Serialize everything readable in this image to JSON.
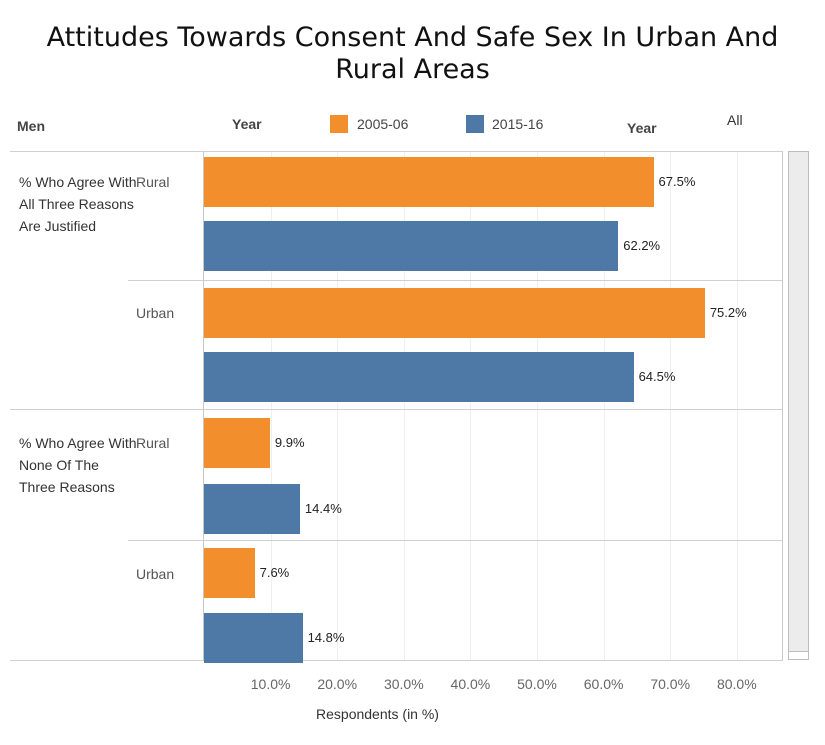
{
  "header": {
    "title_line1": "Attitudes Towards Consent And Safe Sex In Urban And",
    "title_line2": "Rural Areas",
    "men_label": "Men",
    "year_label_left": "Year",
    "year_label_right": "Year",
    "all_label": "All"
  },
  "legend": [
    {
      "label": "2005-06",
      "color": "#f28e2b"
    },
    {
      "label": "2015-16",
      "color": "#4e79a7"
    }
  ],
  "chart_data": {
    "type": "bar",
    "orientation": "horizontal",
    "title": "Attitudes Towards Consent And Safe Sex In Urban And Rural Areas",
    "xlabel": "Respondents (in %)",
    "xlim": [
      0,
      87
    ],
    "xticks": [
      "10.0%",
      "20.0%",
      "30.0%",
      "40.0%",
      "50.0%",
      "60.0%",
      "70.0%",
      "80.0%"
    ],
    "groups": [
      {
        "label": "% Who Agree With All Three Reasons Are Justified",
        "rows": [
          {
            "label": "Rural",
            "values": [
              {
                "series": "2005-06",
                "value": 67.5,
                "text": "67.5%"
              },
              {
                "series": "2015-16",
                "value": 62.2,
                "text": "62.2%"
              }
            ]
          },
          {
            "label": "Urban",
            "values": [
              {
                "series": "2005-06",
                "value": 75.2,
                "text": "75.2%"
              },
              {
                "series": "2015-16",
                "value": 64.5,
                "text": "64.5%"
              }
            ]
          }
        ]
      },
      {
        "label": "% Who Agree With None Of The Three Reasons",
        "rows": [
          {
            "label": "Rural",
            "values": [
              {
                "series": "2005-06",
                "value": 9.9,
                "text": "9.9%"
              },
              {
                "series": "2015-16",
                "value": 14.4,
                "text": "14.4%"
              }
            ]
          },
          {
            "label": "Urban",
            "values": [
              {
                "series": "2005-06",
                "value": 7.6,
                "text": "7.6%"
              },
              {
                "series": "2015-16",
                "value": 14.8,
                "text": "14.8%"
              }
            ]
          }
        ]
      }
    ]
  }
}
